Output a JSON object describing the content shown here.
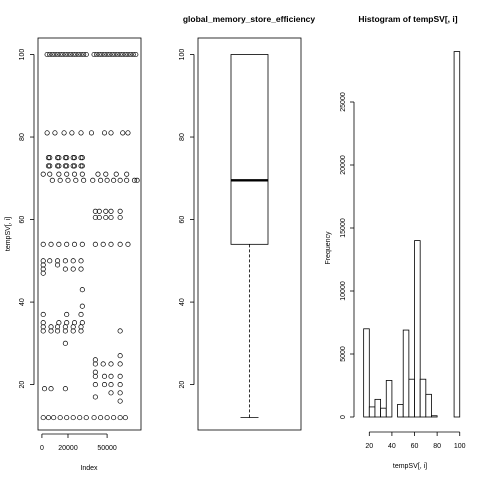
{
  "chart_data": [
    {
      "type": "scatter",
      "title": "",
      "xlabel": "Index",
      "ylabel": "tempSV[, i]",
      "xlim": [
        -3000,
        76000
      ],
      "ylim": [
        9,
        104
      ],
      "xticks": [
        0,
        20000,
        50000
      ],
      "xtick_labels": [
        "0",
        "20000",
        "50000"
      ],
      "yticks": [
        20,
        40,
        60,
        80,
        100
      ],
      "ytick_labels": [
        "20",
        "40",
        "60",
        "80",
        "100"
      ],
      "points": [
        [
          1000,
          12
        ],
        [
          5000,
          12
        ],
        [
          9000,
          12
        ],
        [
          14000,
          12
        ],
        [
          19000,
          12
        ],
        [
          24000,
          12
        ],
        [
          29000,
          12
        ],
        [
          34000,
          12
        ],
        [
          40000,
          12
        ],
        [
          45000,
          12
        ],
        [
          50000,
          12
        ],
        [
          55000,
          12
        ],
        [
          60000,
          12
        ],
        [
          64000,
          12
        ],
        [
          4000,
          100
        ],
        [
          6000,
          100
        ],
        [
          8000,
          100
        ],
        [
          10000,
          100
        ],
        [
          12000,
          100
        ],
        [
          14000,
          100
        ],
        [
          16000,
          100
        ],
        [
          18000,
          100
        ],
        [
          20000,
          100
        ],
        [
          22000,
          100
        ],
        [
          24000,
          100
        ],
        [
          26000,
          100
        ],
        [
          28000,
          100
        ],
        [
          30000,
          100
        ],
        [
          32000,
          100
        ],
        [
          34000,
          100
        ],
        [
          40000,
          100
        ],
        [
          42000,
          100
        ],
        [
          44000,
          100
        ],
        [
          46000,
          100
        ],
        [
          48000,
          100
        ],
        [
          50000,
          100
        ],
        [
          52000,
          100
        ],
        [
          54000,
          100
        ],
        [
          56000,
          100
        ],
        [
          58000,
          100
        ],
        [
          60000,
          100
        ],
        [
          62000,
          100
        ],
        [
          64000,
          100
        ],
        [
          66000,
          100
        ],
        [
          68000,
          100
        ],
        [
          70000,
          100
        ],
        [
          72000,
          100
        ],
        [
          1000,
          71
        ],
        [
          6000,
          71
        ],
        [
          13000,
          71
        ],
        [
          19000,
          71
        ],
        [
          25000,
          71
        ],
        [
          31000,
          71
        ],
        [
          43000,
          71
        ],
        [
          49000,
          71
        ],
        [
          57000,
          71
        ],
        [
          65000,
          71
        ],
        [
          5000,
          73
        ],
        [
          6000,
          73
        ],
        [
          12000,
          73
        ],
        [
          13000,
          73
        ],
        [
          18000,
          73
        ],
        [
          19000,
          73
        ],
        [
          24000,
          73
        ],
        [
          25000,
          73
        ],
        [
          30000,
          73
        ],
        [
          31000,
          73
        ],
        [
          5000,
          75
        ],
        [
          6000,
          75
        ],
        [
          12000,
          75
        ],
        [
          13000,
          75
        ],
        [
          18000,
          75
        ],
        [
          19000,
          75
        ],
        [
          24000,
          75
        ],
        [
          25000,
          75
        ],
        [
          30000,
          75
        ],
        [
          31000,
          75
        ],
        [
          8000,
          69.5
        ],
        [
          14000,
          69.5
        ],
        [
          20000,
          69.5
        ],
        [
          26000,
          69.5
        ],
        [
          32000,
          69.5
        ],
        [
          39000,
          69.5
        ],
        [
          45000,
          69.5
        ],
        [
          50000,
          69.5
        ],
        [
          55000,
          69.5
        ],
        [
          60000,
          69.5
        ],
        [
          65000,
          69.5
        ],
        [
          71000,
          69.5
        ],
        [
          73000,
          69.5
        ],
        [
          4000,
          81
        ],
        [
          10000,
          81
        ],
        [
          17000,
          81
        ],
        [
          23000,
          81
        ],
        [
          30000,
          81
        ],
        [
          38000,
          81
        ],
        [
          48000,
          81
        ],
        [
          53000,
          81
        ],
        [
          62000,
          81
        ],
        [
          66000,
          81
        ],
        [
          1000,
          54
        ],
        [
          7000,
          54
        ],
        [
          13000,
          54
        ],
        [
          19000,
          54
        ],
        [
          25000,
          54
        ],
        [
          31000,
          54
        ],
        [
          41000,
          54
        ],
        [
          47000,
          54
        ],
        [
          53000,
          54
        ],
        [
          60000,
          54
        ],
        [
          66000,
          54
        ],
        [
          1000,
          50
        ],
        [
          6000,
          50
        ],
        [
          12000,
          50
        ],
        [
          18000,
          50
        ],
        [
          24000,
          50
        ],
        [
          30000,
          50
        ],
        [
          1000,
          49
        ],
        [
          1000,
          48
        ],
        [
          1000,
          47
        ],
        [
          12000,
          49
        ],
        [
          18000,
          48
        ],
        [
          24000,
          48
        ],
        [
          30000,
          48
        ],
        [
          41000,
          62
        ],
        [
          44000,
          62
        ],
        [
          49000,
          62
        ],
        [
          53000,
          62
        ],
        [
          60000,
          62
        ],
        [
          41000,
          60.5
        ],
        [
          44000,
          60.5
        ],
        [
          49000,
          60.5
        ],
        [
          53000,
          60.5
        ],
        [
          60000,
          60.5
        ],
        [
          1000,
          33
        ],
        [
          1000,
          34
        ],
        [
          1000,
          35
        ],
        [
          1000,
          37
        ],
        [
          7000,
          33
        ],
        [
          7000,
          34
        ],
        [
          12000,
          33
        ],
        [
          12000,
          34
        ],
        [
          13000,
          35
        ],
        [
          18000,
          33
        ],
        [
          18000,
          34
        ],
        [
          19000,
          35
        ],
        [
          19000,
          37
        ],
        [
          18000,
          30
        ],
        [
          24000,
          33
        ],
        [
          24000,
          34
        ],
        [
          25000,
          35
        ],
        [
          30000,
          33
        ],
        [
          30000,
          34
        ],
        [
          31000,
          35
        ],
        [
          30000,
          37
        ],
        [
          31000,
          43
        ],
        [
          31000,
          39
        ],
        [
          41000,
          26
        ],
        [
          41000,
          25
        ],
        [
          41000,
          23
        ],
        [
          41000,
          22
        ],
        [
          41000,
          20
        ],
        [
          41000,
          17
        ],
        [
          47000,
          25
        ],
        [
          48000,
          20
        ],
        [
          48000,
          22
        ],
        [
          53000,
          25
        ],
        [
          53000,
          22
        ],
        [
          53000,
          20
        ],
        [
          53000,
          18
        ],
        [
          60000,
          25
        ],
        [
          60000,
          22
        ],
        [
          60000,
          20
        ],
        [
          60000,
          18
        ],
        [
          60000,
          27
        ],
        [
          60000,
          33
        ],
        [
          60000,
          16
        ],
        [
          7000,
          19
        ],
        [
          18000,
          19
        ],
        [
          2000,
          19
        ]
      ]
    },
    {
      "type": "box",
      "title": "global_memory_store_efficiency",
      "xlabel": "",
      "ylabel": "",
      "ylim": [
        9,
        104
      ],
      "yticks": [
        20,
        40,
        60,
        80,
        100
      ],
      "ytick_labels": [
        "20",
        "40",
        "60",
        "80",
        "100"
      ],
      "min": 12,
      "q1": 54,
      "median": 69.5,
      "q3": 100,
      "max": 100
    },
    {
      "type": "bar",
      "subtype": "histogram",
      "title": "Histogram of tempSV[, i]",
      "xlabel": "tempSV[, i]",
      "ylabel": "Frequency",
      "xlim": [
        10,
        102
      ],
      "ylim": [
        0,
        30000
      ],
      "xticks": [
        20,
        40,
        60,
        80,
        100
      ],
      "xtick_labels": [
        "20",
        "40",
        "60",
        "80",
        "100"
      ],
      "yticks": [
        0,
        5000,
        10000,
        15000,
        20000,
        25000
      ],
      "ytick_labels": [
        "0",
        "5000",
        "10000",
        "15000",
        "20000",
        "25000"
      ],
      "bin_edges": [
        10,
        15,
        20,
        25,
        30,
        35,
        40,
        45,
        50,
        55,
        60,
        65,
        70,
        75,
        80,
        85,
        90,
        95,
        100
      ],
      "values": [
        0,
        7000,
        800,
        1400,
        700,
        2900,
        0,
        1000,
        6900,
        3000,
        14000,
        3000,
        1800,
        100,
        0,
        0,
        0,
        29000
      ]
    }
  ]
}
